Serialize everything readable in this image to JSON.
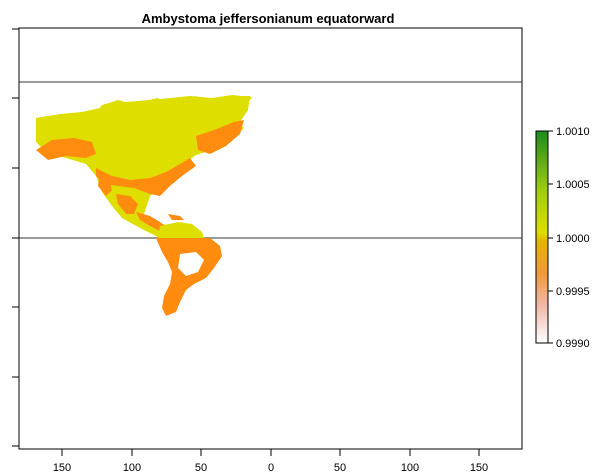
{
  "title": "Ambystoma jeffersonianum equatorward",
  "x_ticks": [
    "150",
    "100",
    "50",
    "0",
    "50",
    "100",
    "150"
  ],
  "legend": {
    "ticks": [
      "1.0010",
      "1.0005",
      "1.0000",
      "0.9995",
      "0.9990"
    ],
    "colors": {
      "high": "#1e8a1e",
      "mid": "#dede00",
      "low": "#ef8f14",
      "min": "#fae8e8"
    }
  },
  "map_colors": {
    "north_mid": "#dede00",
    "orange": "#ff8c0f"
  }
}
